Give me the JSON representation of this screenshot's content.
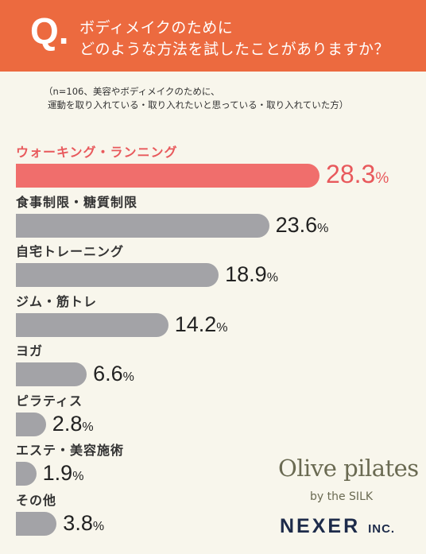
{
  "header": {
    "q_mark": "Q.",
    "question_line1": "ボディメイクのために",
    "question_line2": "どのような方法を試したことがありますか？"
  },
  "note": {
    "line1": "（n=106、美容やボディメイクのために、",
    "line2": "運動を取り入れている・取り入れたいと思っている・取り入れていた方）"
  },
  "colors": {
    "header": "#ec6a3f",
    "highlight_bar": "#f06e6c",
    "highlight_text": "#e8595c",
    "bar": "#a3a3a7",
    "background": "#f8f6ec"
  },
  "chart_data": {
    "type": "bar",
    "orientation": "horizontal",
    "categories": [
      "ウォーキング・ランニング",
      "食事制限・糖質制限",
      "自宅トレーニング",
      "ジム・筋トレ",
      "ヨガ",
      "ピラティス",
      "エステ・美容施術",
      "その他"
    ],
    "values": [
      28.3,
      23.6,
      18.9,
      14.2,
      6.6,
      2.8,
      1.9,
      3.8
    ],
    "value_labels": [
      "28.3",
      "23.6",
      "18.9",
      "14.2",
      "6.6",
      "2.8",
      "1.9",
      "3.8"
    ],
    "unit": "%",
    "highlight_index": 0
  },
  "brand": {
    "name1": "Olive pilates",
    "name2": "by the SILK",
    "company": "NEXER",
    "company_suffix": "INC."
  }
}
